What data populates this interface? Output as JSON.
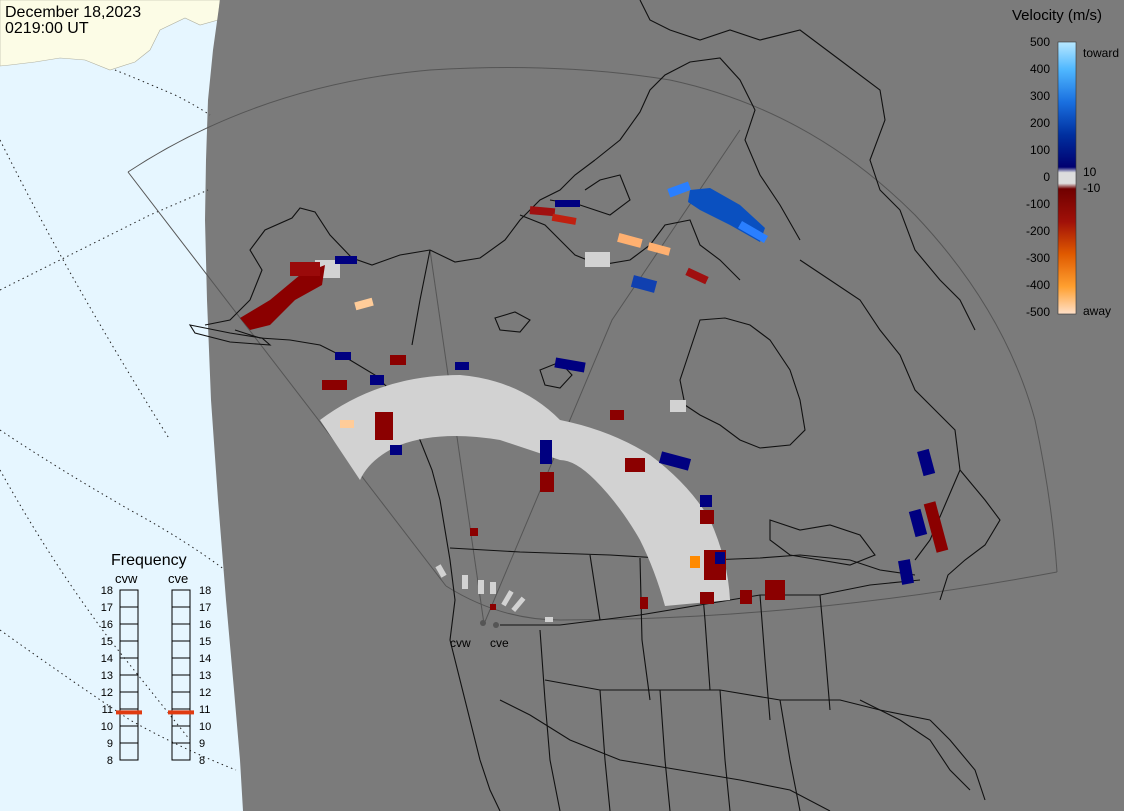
{
  "header": {
    "date": "December 18,2023",
    "time": "0219:00 UT"
  },
  "colorbar": {
    "title": "Velocity (m/s)",
    "toward_label": "toward",
    "away_label": "away",
    "ticks": [
      "500",
      "400",
      "300",
      "200",
      "100",
      "0",
      "-100",
      "-200",
      "-300",
      "-400",
      "-500"
    ],
    "inner_pos": "10",
    "inner_neg": "-10"
  },
  "frequency": {
    "title": "Frequency",
    "left_label": "cvw",
    "right_label": "cve",
    "scale": [
      "18",
      "17",
      "16",
      "15",
      "14",
      "13",
      "12",
      "11",
      "10",
      "9",
      "8"
    ],
    "cvw_mhz": 10.8,
    "cve_mhz": 10.8,
    "marker_color": "#e03a10"
  },
  "radars": {
    "west_label": "cvw",
    "east_label": "cve"
  },
  "colors": {
    "ocean_day": "#e6f6ff",
    "land_day": "#fcfce6",
    "night": "#7b7b7b",
    "ground_scatter": "#d2d2d2"
  }
}
